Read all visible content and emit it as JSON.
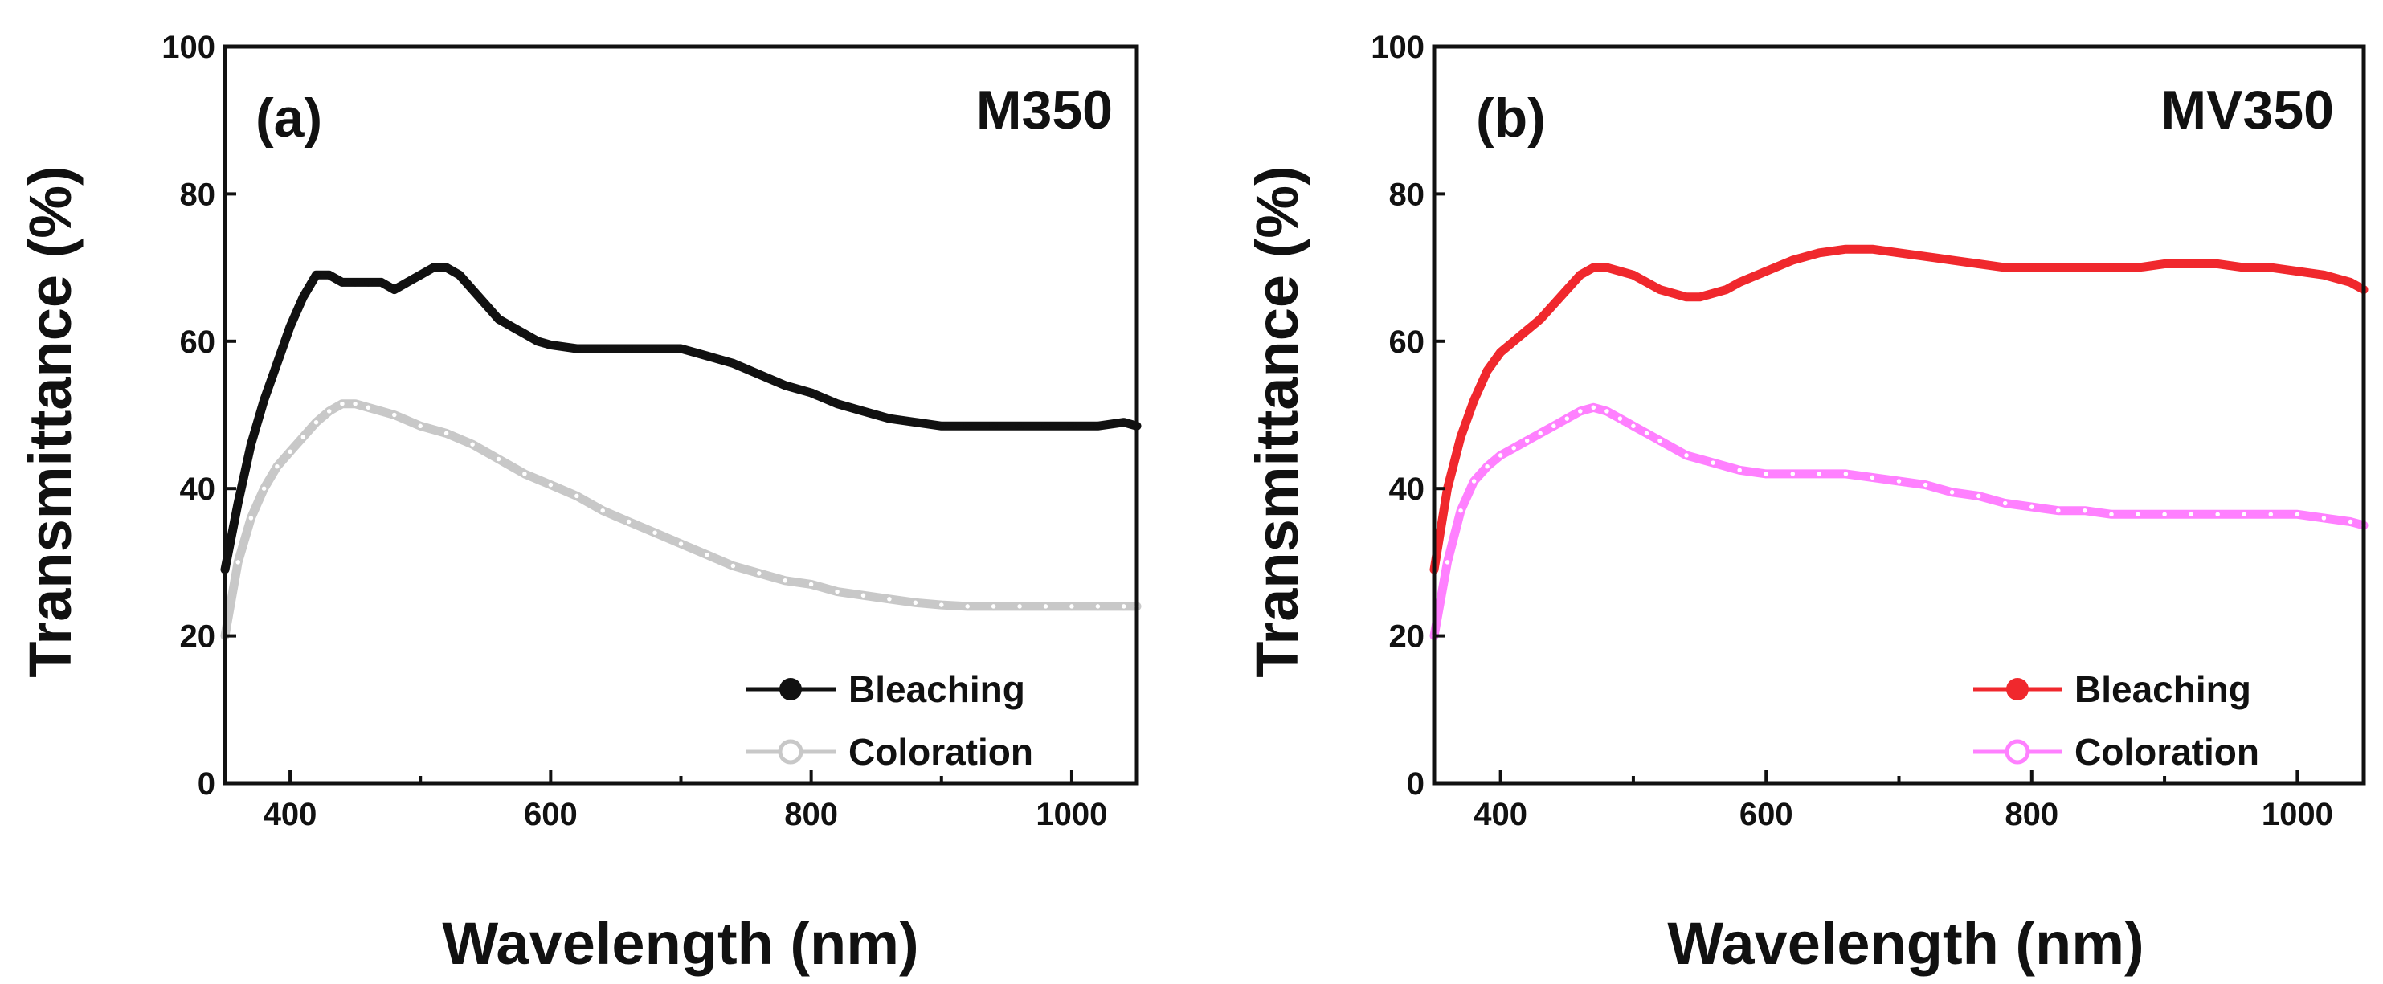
{
  "chart_data": [
    {
      "type": "line",
      "panel_label": "(a)",
      "title": "M350",
      "xlabel": "Wavelength (nm)",
      "ylabel": "Transmittance (%)",
      "xlim": [
        350,
        1050
      ],
      "ylim": [
        0,
        100
      ],
      "xticks": [
        400,
        600,
        800,
        1000
      ],
      "yticks": [
        0,
        20,
        40,
        60,
        80,
        100
      ],
      "legend_position": "bottom-right",
      "series": [
        {
          "name": "Bleaching",
          "color": "#111111",
          "marker": "filled-circle",
          "x": [
            350,
            360,
            370,
            380,
            390,
            400,
            410,
            420,
            430,
            440,
            450,
            460,
            470,
            480,
            490,
            500,
            510,
            520,
            530,
            540,
            550,
            560,
            570,
            580,
            590,
            600,
            620,
            640,
            660,
            680,
            700,
            720,
            740,
            760,
            780,
            800,
            820,
            840,
            860,
            880,
            900,
            920,
            940,
            960,
            980,
            1000,
            1020,
            1040,
            1050
          ],
          "y": [
            29,
            38,
            46,
            52,
            57,
            62,
            66,
            69,
            69,
            68,
            68,
            68,
            68,
            67,
            68,
            69,
            70,
            70,
            69,
            67,
            65,
            63,
            62,
            61,
            60,
            59.5,
            59,
            59,
            59,
            59,
            59,
            58,
            57,
            55.5,
            54,
            53,
            51.5,
            50.5,
            49.5,
            49,
            48.5,
            48.5,
            48.5,
            48.5,
            48.5,
            48.5,
            48.5,
            49,
            48.5
          ]
        },
        {
          "name": "Coloration",
          "color": "#c8c8c8",
          "marker": "open-circle",
          "x": [
            350,
            360,
            370,
            380,
            390,
            400,
            410,
            420,
            430,
            440,
            450,
            460,
            480,
            500,
            520,
            540,
            560,
            580,
            600,
            620,
            640,
            660,
            680,
            700,
            720,
            740,
            760,
            780,
            800,
            820,
            840,
            860,
            880,
            900,
            920,
            940,
            960,
            980,
            1000,
            1020,
            1040,
            1050
          ],
          "y": [
            20,
            30,
            36,
            40,
            43,
            45,
            47,
            49,
            50.5,
            51.5,
            51.5,
            51,
            50,
            48.5,
            47.5,
            46,
            44,
            42,
            40.5,
            39,
            37,
            35.5,
            34,
            32.5,
            31,
            29.5,
            28.5,
            27.5,
            27,
            26,
            25.5,
            25,
            24.5,
            24.2,
            24,
            24,
            24,
            24,
            24,
            24,
            24,
            24
          ]
        }
      ]
    },
    {
      "type": "line",
      "panel_label": "(b)",
      "title": "MV350",
      "xlabel": "Wavelength (nm)",
      "ylabel": "Transmittance (%)",
      "xlim": [
        350,
        1050
      ],
      "ylim": [
        0,
        100
      ],
      "xticks": [
        400,
        600,
        800,
        1000
      ],
      "yticks": [
        0,
        20,
        40,
        60,
        80,
        100
      ],
      "legend_position": "bottom-right",
      "series": [
        {
          "name": "Bleaching",
          "color": "#f0282d",
          "marker": "filled-circle",
          "x": [
            350,
            360,
            370,
            380,
            390,
            400,
            410,
            420,
            430,
            440,
            450,
            460,
            470,
            480,
            490,
            500,
            510,
            520,
            530,
            540,
            550,
            560,
            570,
            580,
            600,
            620,
            640,
            660,
            680,
            700,
            720,
            740,
            760,
            780,
            800,
            820,
            840,
            860,
            880,
            900,
            920,
            940,
            960,
            980,
            1000,
            1020,
            1040,
            1050
          ],
          "y": [
            29,
            40,
            47,
            52,
            56,
            58.5,
            60,
            61.5,
            63,
            65,
            67,
            69,
            70,
            70,
            69.5,
            69,
            68,
            67,
            66.5,
            66,
            66,
            66.5,
            67,
            68,
            69.5,
            71,
            72,
            72.5,
            72.5,
            72,
            71.5,
            71,
            70.5,
            70,
            70,
            70,
            70,
            70,
            70,
            70.5,
            70.5,
            70.5,
            70,
            70,
            69.5,
            69,
            68,
            67
          ]
        },
        {
          "name": "Coloration",
          "color": "#ff80ff",
          "marker": "open-circle",
          "x": [
            350,
            360,
            370,
            380,
            390,
            400,
            410,
            420,
            430,
            440,
            450,
            460,
            470,
            480,
            490,
            500,
            510,
            520,
            540,
            560,
            580,
            600,
            620,
            640,
            660,
            680,
            700,
            720,
            740,
            760,
            780,
            800,
            820,
            840,
            860,
            880,
            900,
            920,
            940,
            960,
            980,
            1000,
            1020,
            1040,
            1050
          ],
          "y": [
            20,
            30,
            37,
            41,
            43,
            44.5,
            45.5,
            46.5,
            47.5,
            48.5,
            49.5,
            50.5,
            51,
            50.5,
            49.5,
            48.5,
            47.5,
            46.5,
            44.5,
            43.5,
            42.5,
            42,
            42,
            42,
            42,
            41.5,
            41,
            40.5,
            39.5,
            39,
            38,
            37.5,
            37,
            37,
            36.5,
            36.5,
            36.5,
            36.5,
            36.5,
            36.5,
            36.5,
            36.5,
            36,
            35.5,
            35
          ]
        }
      ]
    }
  ]
}
